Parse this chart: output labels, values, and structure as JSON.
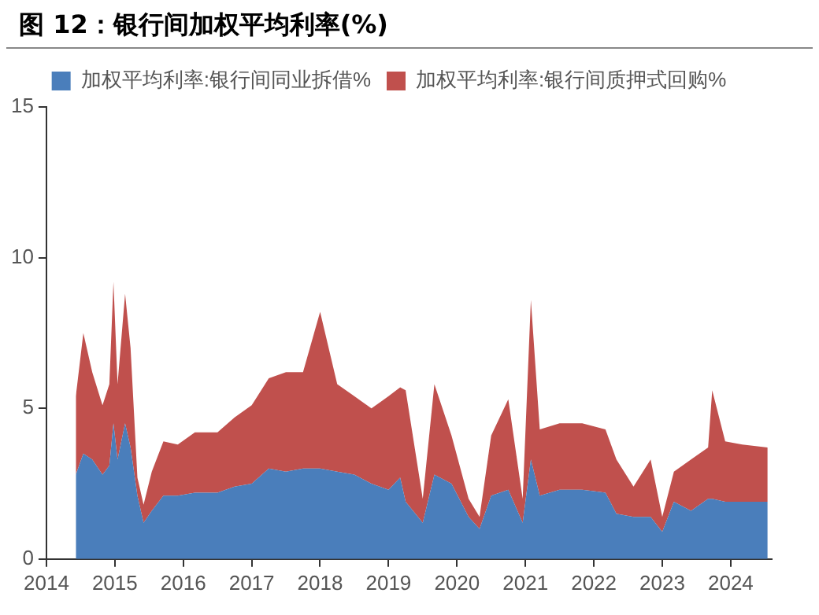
{
  "chart_data": {
    "type": "area",
    "title": "图 12：银行间加权平均利率(%)",
    "stacked": true,
    "legend": "top",
    "grid": false,
    "marker": "none",
    "x": [
      2014.43,
      2014.54,
      2014.67,
      2014.82,
      2014.92,
      2014.98,
      2015.04,
      2015.15,
      2015.23,
      2015.33,
      2015.42,
      2015.54,
      2015.71,
      2015.92,
      2016.17,
      2016.5,
      2016.75,
      2017.0,
      2017.25,
      2017.5,
      2017.75,
      2018.0,
      2018.25,
      2018.5,
      2018.75,
      2019.0,
      2019.17,
      2019.25,
      2019.5,
      2019.67,
      2019.92,
      2020.17,
      2020.33,
      2020.5,
      2020.75,
      2020.96,
      2021.08,
      2021.21,
      2021.5,
      2021.83,
      2022.17,
      2022.33,
      2022.58,
      2022.83,
      2023.0,
      2023.17,
      2023.42,
      2023.67,
      2023.73,
      2023.92,
      2024.17,
      2024.54
    ],
    "series": [
      {
        "name": "加权平均利率:银行间同业拆借%",
        "color": "#4a7ebb",
        "values": [
          2.8,
          3.5,
          3.3,
          2.8,
          3.1,
          4.5,
          3.3,
          4.5,
          3.7,
          2.1,
          1.2,
          1.6,
          2.1,
          2.1,
          2.2,
          2.2,
          2.4,
          2.5,
          3.0,
          2.9,
          3.0,
          3.0,
          2.9,
          2.8,
          2.5,
          2.3,
          2.7,
          1.9,
          1.2,
          2.8,
          2.5,
          1.4,
          1.0,
          2.1,
          2.3,
          1.2,
          3.3,
          2.1,
          2.3,
          2.3,
          2.2,
          1.5,
          1.4,
          1.4,
          0.9,
          1.9,
          1.6,
          2.0,
          2.0,
          1.9,
          1.9,
          1.9
        ]
      },
      {
        "name": "加权平均利率:银行间质押式回购%",
        "color": "#c0504d",
        "values": [
          2.6,
          4.0,
          2.9,
          2.3,
          2.7,
          4.7,
          2.5,
          4.3,
          3.3,
          0.6,
          0.6,
          1.3,
          1.8,
          1.7,
          2.0,
          2.0,
          2.3,
          2.6,
          3.0,
          3.3,
          3.2,
          5.2,
          2.9,
          2.6,
          2.5,
          3.1,
          3.0,
          3.7,
          0.8,
          3.0,
          1.6,
          0.6,
          0.4,
          2.0,
          3.0,
          0.8,
          5.3,
          2.2,
          2.2,
          2.2,
          2.1,
          1.8,
          1.0,
          1.9,
          0.5,
          1.0,
          1.7,
          1.7,
          3.6,
          2.0,
          1.9,
          1.8
        ]
      }
    ],
    "xlim": [
      2014,
      2024.6
    ],
    "xticks": [
      2014,
      2015,
      2016,
      2017,
      2018,
      2019,
      2020,
      2021,
      2022,
      2023,
      2024
    ],
    "ylim": [
      0,
      15
    ],
    "yticks": [
      0,
      5,
      10,
      15
    ]
  }
}
